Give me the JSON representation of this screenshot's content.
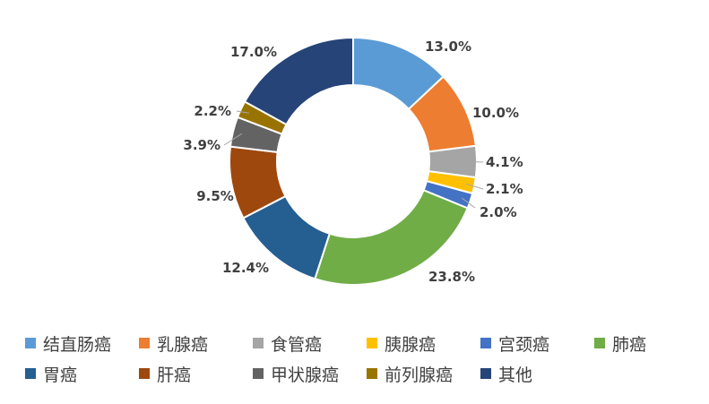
{
  "chart_data": {
    "type": "pie",
    "donut": true,
    "categories": [
      "结直肠癌",
      "乳腺癌",
      "食管癌",
      "胰腺癌",
      "宫颈癌",
      "肺癌",
      "胃癌",
      "肝癌",
      "甲状腺癌",
      "前列腺癌",
      "其他"
    ],
    "values": [
      13.0,
      10.0,
      4.1,
      2.1,
      2.0,
      23.8,
      12.4,
      9.5,
      3.9,
      2.2,
      17.0
    ],
    "data_labels": [
      "13.0%",
      "10.0%",
      "4.1%",
      "2.1%",
      "2.0%",
      "23.8%",
      "12.4%",
      "9.5%",
      "3.9%",
      "2.2%",
      "17.0%"
    ],
    "colors": [
      "#5B9BD5",
      "#ED7D31",
      "#A5A5A5",
      "#FFC000",
      "#4472C4",
      "#70AD47",
      "#255E91",
      "#9E480E",
      "#636363",
      "#997300",
      "#264478"
    ],
    "legend_position": "bottom",
    "title": ""
  }
}
